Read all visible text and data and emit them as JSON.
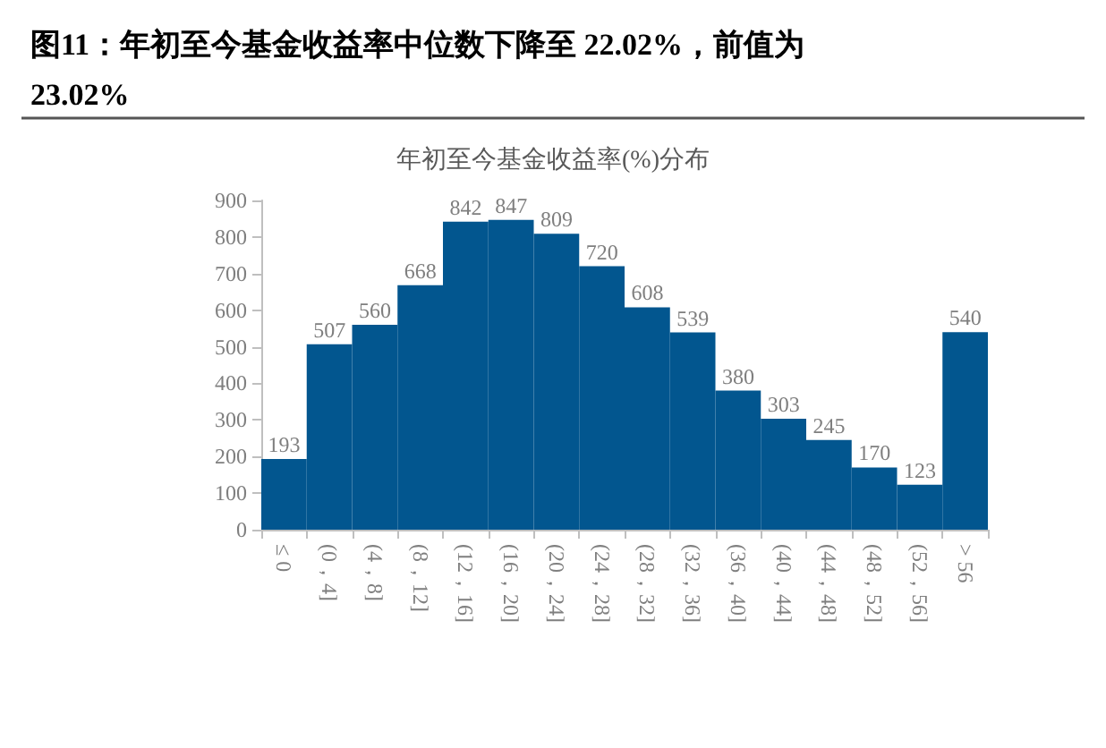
{
  "chart_data": {
    "type": "bar",
    "title": "图11：年初至今基金收益率中位数下降至 22.02%，前值为 23.02%",
    "subtitle": "年初至今基金收益率(%)分布",
    "categories": [
      "≤ 0",
      "(0，4]",
      "(4，8]",
      "(8，12]",
      "(12，16]",
      "(16，20]",
      "(20，24]",
      "(24，28]",
      "(28，32]",
      "(32，36]",
      "(36，40]",
      "(40，44]",
      "(44，48]",
      "(48，52]",
      "(52，56]",
      "> 56"
    ],
    "values": [
      193,
      507,
      560,
      668,
      842,
      847,
      809,
      720,
      608,
      539,
      380,
      303,
      245,
      170,
      123,
      540
    ],
    "color": "#02568f",
    "ylim": [
      0,
      900
    ],
    "yticks": [
      0,
      100,
      200,
      300,
      400,
      500,
      600,
      700,
      800,
      900
    ],
    "grid": false,
    "data_labels": true
  }
}
